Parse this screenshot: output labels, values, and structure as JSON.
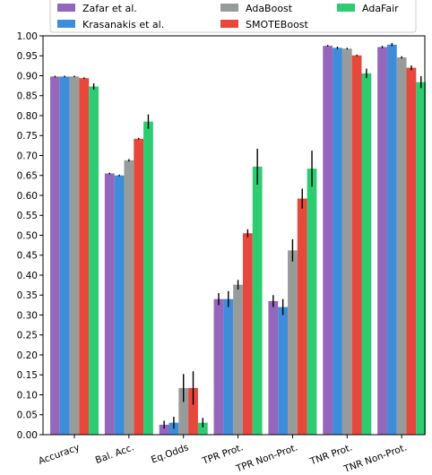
{
  "chart_data": {
    "type": "bar",
    "title": "",
    "xlabel": "",
    "ylabel": "",
    "ylim": [
      0,
      1.0
    ],
    "yticks": [
      "0.00",
      "0.05",
      "0.10",
      "0.15",
      "0.20",
      "0.25",
      "0.30",
      "0.35",
      "0.40",
      "0.45",
      "0.50",
      "0.55",
      "0.60",
      "0.65",
      "0.70",
      "0.75",
      "0.80",
      "0.85",
      "0.90",
      "0.95",
      "1.00"
    ],
    "grid": false,
    "legend_position": "top",
    "categories": [
      "Accuracy",
      "Bal. Acc.",
      "Eq.Odds",
      "TPR Prot.",
      "TPR Non-Prot.",
      "TNR Prot.",
      "TNR Non-Prot."
    ],
    "series": [
      {
        "name": "Zafar et al.",
        "color": "#9467bd",
        "values": [
          0.898,
          0.655,
          0.025,
          0.34,
          0.335,
          0.975,
          0.972
        ],
        "errors": [
          0.002,
          0.002,
          0.01,
          0.015,
          0.015,
          0.002,
          0.003
        ]
      },
      {
        "name": "Krasanakis et al.",
        "color": "#3e8ddb",
        "values": [
          0.898,
          0.65,
          0.03,
          0.34,
          0.32,
          0.97,
          0.978
        ],
        "errors": [
          0.002,
          0.002,
          0.015,
          0.02,
          0.02,
          0.003,
          0.004
        ]
      },
      {
        "name": "AdaBoost",
        "color": "#979c9b",
        "values": [
          0.898,
          0.688,
          0.117,
          0.376,
          0.462,
          0.968,
          0.946
        ],
        "errors": [
          0.002,
          0.003,
          0.035,
          0.012,
          0.028,
          0.002,
          0.003
        ]
      },
      {
        "name": "SMOTEBoost",
        "color": "#e8473b",
        "values": [
          0.894,
          0.742,
          0.117,
          0.505,
          0.592,
          0.951,
          0.92
        ],
        "errors": [
          0.002,
          0.002,
          0.042,
          0.01,
          0.025,
          0.002,
          0.006
        ]
      },
      {
        "name": "AdaFair",
        "color": "#2ecc71",
        "values": [
          0.873,
          0.785,
          0.03,
          0.672,
          0.667,
          0.906,
          0.884
        ],
        "errors": [
          0.008,
          0.018,
          0.012,
          0.045,
          0.045,
          0.012,
          0.015
        ]
      }
    ]
  }
}
